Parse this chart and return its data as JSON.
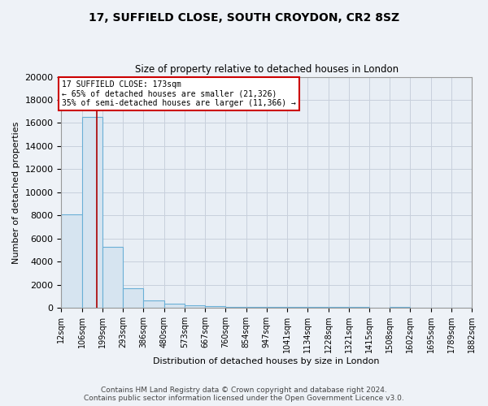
{
  "title": "17, SUFFIELD CLOSE, SOUTH CROYDON, CR2 8SZ",
  "subtitle": "Size of property relative to detached houses in London",
  "xlabel": "Distribution of detached houses by size in London",
  "ylabel": "Number of detached properties",
  "footer_line1": "Contains HM Land Registry data © Crown copyright and database right 2024.",
  "footer_line2": "Contains public sector information licensed under the Open Government Licence v3.0.",
  "bar_edges": [
    12,
    106,
    199,
    293,
    386,
    480,
    573,
    667,
    760,
    854,
    947,
    1041,
    1134,
    1228,
    1321,
    1415,
    1508,
    1602,
    1695,
    1789,
    1882
  ],
  "bar_heights": [
    8100,
    16500,
    5300,
    1700,
    650,
    350,
    250,
    150,
    120,
    90,
    90,
    80,
    60,
    55,
    80,
    50,
    75,
    50,
    45,
    45
  ],
  "bar_color": "#d6e4f0",
  "bar_edge_color": "#6aafd6",
  "property_line_x": 173,
  "property_line_color": "#aa0000",
  "annotation_line1": "17 SUFFIELD CLOSE: 173sqm",
  "annotation_line2": "← 65% of detached houses are smaller (21,326)",
  "annotation_line3": "35% of semi-detached houses are larger (11,366) →",
  "annotation_box_color": "#cc0000",
  "ylim": [
    0,
    20000
  ],
  "yticks": [
    0,
    2000,
    4000,
    6000,
    8000,
    10000,
    12000,
    14000,
    16000,
    18000,
    20000
  ],
  "tick_labels": [
    "12sqm",
    "106sqm",
    "199sqm",
    "293sqm",
    "386sqm",
    "480sqm",
    "573sqm",
    "667sqm",
    "760sqm",
    "854sqm",
    "947sqm",
    "1041sqm",
    "1134sqm",
    "1228sqm",
    "1321sqm",
    "1415sqm",
    "1508sqm",
    "1602sqm",
    "1695sqm",
    "1789sqm",
    "1882sqm"
  ],
  "background_color": "#eef2f7",
  "plot_background": "#e8eef5",
  "grid_color": "#c8d0dc",
  "title_fontsize": 10,
  "subtitle_fontsize": 8.5,
  "ylabel_fontsize": 8,
  "xlabel_fontsize": 8,
  "tick_fontsize": 7,
  "ytick_fontsize": 8,
  "footer_fontsize": 6.5
}
